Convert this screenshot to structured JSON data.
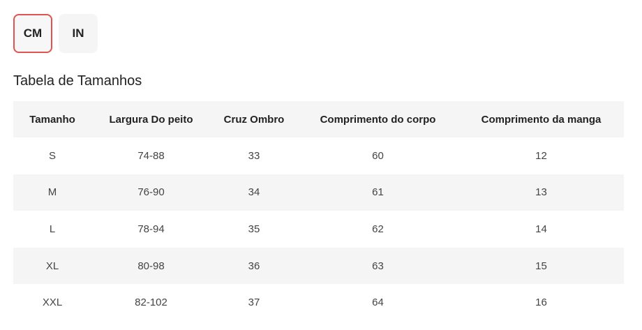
{
  "units": {
    "options": [
      {
        "label": "CM",
        "active": true
      },
      {
        "label": "IN",
        "active": false
      }
    ]
  },
  "title": "Tabela de Tamanhos",
  "table": {
    "headers": [
      "Tamanho",
      "Largura Do peito",
      "Cruz Ombro",
      "Comprimento do corpo",
      "Comprimento da manga"
    ],
    "rows": [
      [
        "S",
        "74-88",
        "33",
        "60",
        "12"
      ],
      [
        "M",
        "76-90",
        "34",
        "61",
        "13"
      ],
      [
        "L",
        "78-94",
        "35",
        "62",
        "14"
      ],
      [
        "XL",
        "80-98",
        "36",
        "63",
        "15"
      ],
      [
        "XXL",
        "82-102",
        "37",
        "64",
        "16"
      ]
    ]
  },
  "colors": {
    "accent_border": "#e2524f",
    "header_bg": "#f5f5f5",
    "alt_row_bg": "#f5f5f5"
  }
}
